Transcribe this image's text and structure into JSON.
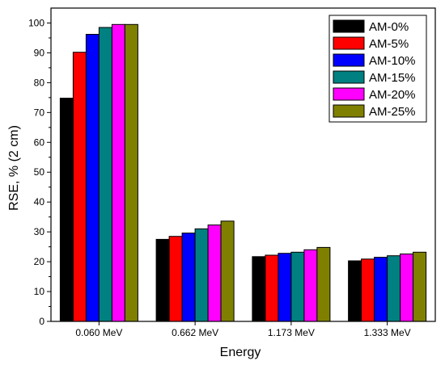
{
  "chart_data": {
    "type": "bar",
    "title": "",
    "xlabel": "Energy",
    "ylabel": "RSE, % (2 cm)",
    "ylim": [
      0,
      105
    ],
    "yticks": [
      0,
      10,
      20,
      30,
      40,
      50,
      60,
      70,
      80,
      90,
      100
    ],
    "grid": false,
    "legend_position": "top-right",
    "categories": [
      "0.060 MeV",
      "0.662 MeV",
      "1.173 MeV",
      "1.333 MeV"
    ],
    "series": [
      {
        "name": "AM-0%",
        "color": "#000000",
        "values": [
          74.8,
          27.5,
          21.7,
          20.3
        ]
      },
      {
        "name": "AM-5%",
        "color": "#ff0000",
        "values": [
          90.2,
          28.5,
          22.2,
          20.9
        ]
      },
      {
        "name": "AM-10%",
        "color": "#0000ff",
        "values": [
          96.2,
          29.6,
          22.8,
          21.5
        ]
      },
      {
        "name": "AM-15%",
        "color": "#008080",
        "values": [
          98.5,
          31.0,
          23.2,
          22.0
        ]
      },
      {
        "name": "AM-20%",
        "color": "#ff00ff",
        "values": [
          99.5,
          32.3,
          24.0,
          22.6
        ]
      },
      {
        "name": "AM-25%",
        "color": "#808000",
        "values": [
          99.5,
          33.6,
          24.8,
          23.2
        ]
      }
    ]
  }
}
